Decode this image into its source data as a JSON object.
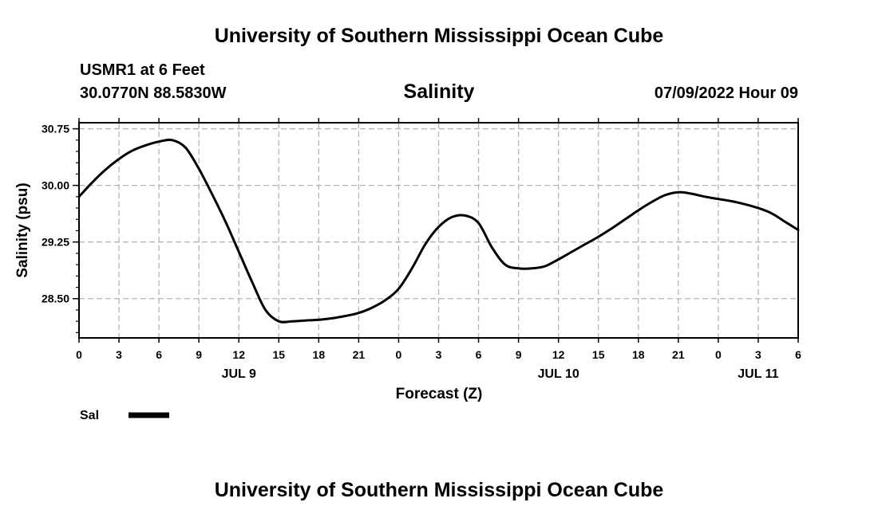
{
  "page": {
    "header_title": "University of Southern Mississippi Ocean Cube",
    "footer_title": "University of Southern Mississippi Ocean Cube",
    "station": "USMR1 at 6 Feet",
    "coords": "30.0770N  88.5830W",
    "chart_title": "Salinity",
    "datetime": "07/09/2022 Hour 09"
  },
  "chart_data": {
    "type": "line",
    "title": "Salinity",
    "xlabel": "Forecast (Z)",
    "ylabel": "Salinity (psu)",
    "ylim": [
      27.98,
      30.83
    ],
    "xlim": [
      0,
      54
    ],
    "x_unit": "hours since JUL 9 00Z",
    "grid": true,
    "x_ticks": [
      0,
      3,
      6,
      9,
      12,
      15,
      18,
      21,
      24,
      27,
      30,
      33,
      36,
      39,
      42,
      45,
      48,
      51,
      54
    ],
    "x_tick_labels": [
      "0",
      "3",
      "6",
      "9",
      "12",
      "15",
      "18",
      "21",
      "0",
      "3",
      "6",
      "9",
      "12",
      "15",
      "18",
      "21",
      "0",
      "3",
      "6"
    ],
    "date_labels": [
      {
        "x": 12,
        "label": "JUL 9"
      },
      {
        "x": 36,
        "label": "JUL 10"
      },
      {
        "x": 51,
        "label": "JUL 11"
      }
    ],
    "y_ticks": [
      28.5,
      29.25,
      30.0,
      30.75
    ],
    "y_tick_labels": [
      "28.50",
      "29.25",
      "30.00",
      "30.75"
    ],
    "y_minor_step": 0.15,
    "series": [
      {
        "name": "Sal",
        "x": [
          0,
          1,
          2,
          3,
          4,
          5,
          6,
          7,
          8,
          9,
          10,
          11,
          12,
          13,
          14,
          15,
          16,
          17,
          18,
          19,
          20,
          21,
          22,
          23,
          24,
          25,
          26,
          27,
          28,
          29,
          30,
          31,
          32,
          33,
          34,
          35,
          36,
          37,
          38,
          39,
          40,
          41,
          42,
          43,
          44,
          45,
          46,
          47,
          48,
          49,
          50,
          51,
          52,
          53,
          54
        ],
        "values": [
          29.85,
          30.04,
          30.21,
          30.35,
          30.46,
          30.53,
          30.58,
          30.6,
          30.5,
          30.22,
          29.88,
          29.52,
          29.12,
          28.72,
          28.35,
          28.2,
          28.2,
          28.21,
          28.22,
          28.24,
          28.27,
          28.31,
          28.38,
          28.48,
          28.63,
          28.9,
          29.22,
          29.45,
          29.58,
          29.6,
          29.5,
          29.18,
          28.95,
          28.9,
          28.9,
          28.93,
          29.02,
          29.12,
          29.22,
          29.32,
          29.43,
          29.55,
          29.67,
          29.78,
          29.87,
          29.91,
          29.89,
          29.85,
          29.82,
          29.79,
          29.75,
          29.7,
          29.63,
          29.52,
          29.41
        ]
      }
    ],
    "legend": {
      "label": "Sal",
      "placement": "bottom-left"
    }
  }
}
